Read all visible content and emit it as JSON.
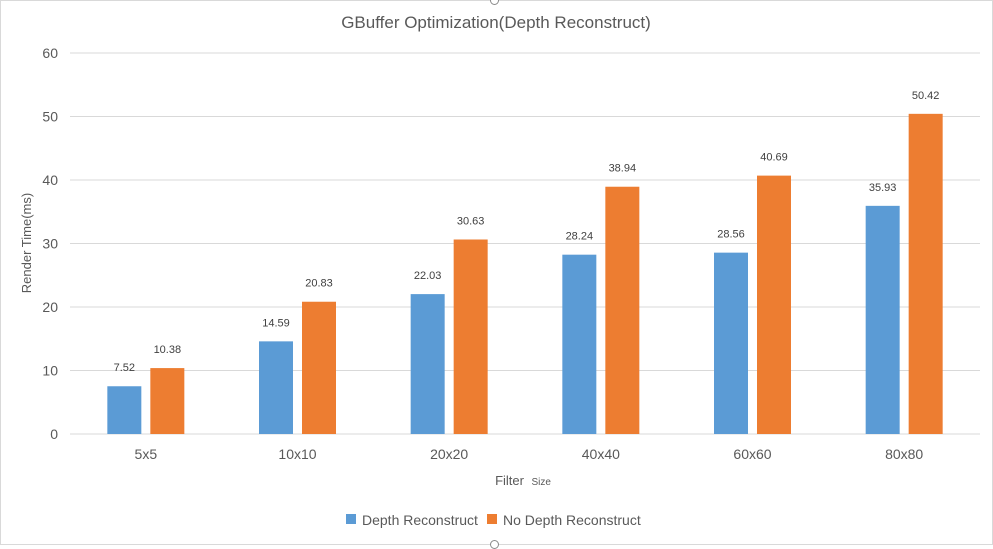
{
  "chart_data": {
    "type": "bar",
    "title": "GBuffer Optimization(Depth Reconstruct)",
    "xlabel_main": "Filter",
    "xlabel_small": "Size",
    "ylabel": "Render Time(ms)",
    "categories": [
      "5x5",
      "10x10",
      "20x20",
      "40x40",
      "60x60",
      "80x80"
    ],
    "series": [
      {
        "name": "Depth Reconstruct",
        "values": [
          7.52,
          14.59,
          22.03,
          28.24,
          28.56,
          35.93
        ],
        "color": "#5b9bd5"
      },
      {
        "name": "No Depth Reconstruct",
        "values": [
          10.38,
          20.83,
          30.63,
          38.94,
          40.69,
          50.42
        ],
        "color": "#ed7d31"
      }
    ],
    "ylim": [
      0,
      60
    ],
    "yticks": [
      0,
      10,
      20,
      30,
      40,
      50,
      60
    ],
    "grid": true,
    "legend_position": "bottom",
    "gridline_color": "#d9d9d9"
  }
}
